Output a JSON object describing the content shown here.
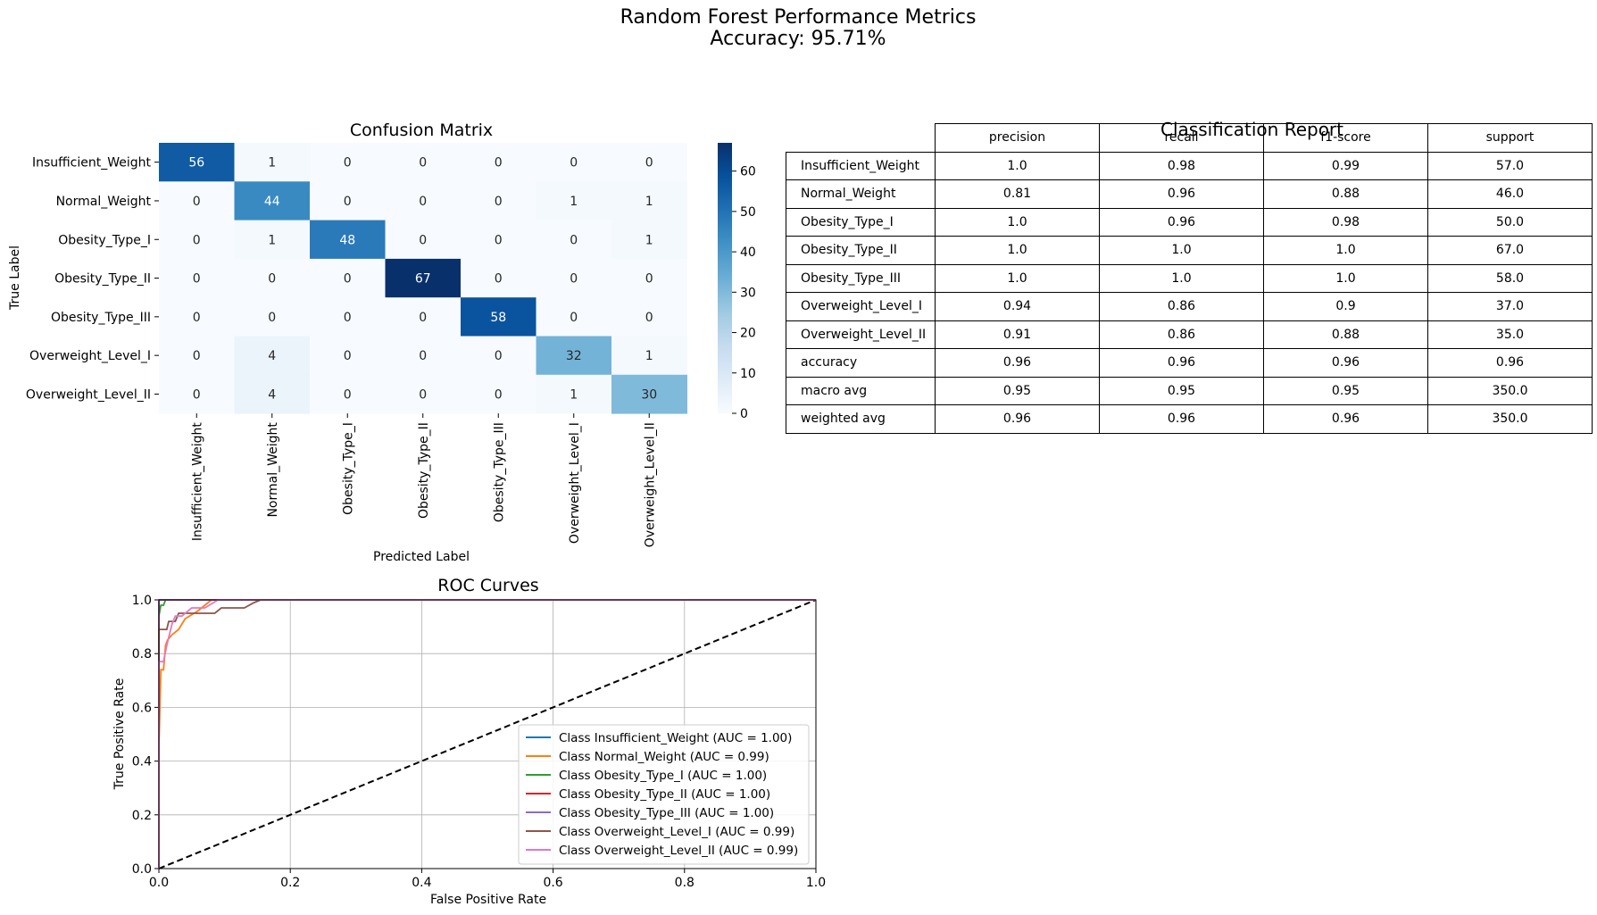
{
  "figure": {
    "suptitle": "Random Forest Performance Metrics",
    "subtitle": "Accuracy: 95.71%"
  },
  "colors": {
    "cmap_low": "#f7fbff",
    "cmap_high": "#08306b",
    "text_light": "#ffffff",
    "text_dark": "#262626",
    "diagonal": "#000000"
  },
  "chart_data": [
    {
      "type": "heatmap",
      "title": "Confusion Matrix",
      "xlabel": "Predicted Label",
      "ylabel": "True Label",
      "classes": [
        "Insufficient_Weight",
        "Normal_Weight",
        "Obesity_Type_I",
        "Obesity_Type_II",
        "Obesity_Type_III",
        "Overweight_Level_I",
        "Overweight_Level_II"
      ],
      "matrix": [
        [
          56,
          1,
          0,
          0,
          0,
          0,
          0
        ],
        [
          0,
          44,
          0,
          0,
          0,
          1,
          1
        ],
        [
          0,
          1,
          48,
          0,
          0,
          0,
          1
        ],
        [
          0,
          0,
          0,
          67,
          0,
          0,
          0
        ],
        [
          0,
          0,
          0,
          0,
          58,
          0,
          0
        ],
        [
          0,
          4,
          0,
          0,
          0,
          32,
          1
        ],
        [
          0,
          4,
          0,
          0,
          0,
          1,
          30
        ]
      ],
      "colorbar": {
        "min": 0,
        "max": 67,
        "ticks": [
          0,
          10,
          20,
          30,
          40,
          50,
          60
        ]
      },
      "colormap": "Blues"
    },
    {
      "type": "table",
      "title": "Classification Report",
      "columns": [
        "precision",
        "recall",
        "f1-score",
        "support"
      ],
      "rows": [
        {
          "label": "Insufficient_Weight",
          "values": [
            "1.0",
            "0.98",
            "0.99",
            "57.0"
          ]
        },
        {
          "label": "Normal_Weight",
          "values": [
            "0.81",
            "0.96",
            "0.88",
            "46.0"
          ]
        },
        {
          "label": "Obesity_Type_I",
          "values": [
            "1.0",
            "0.96",
            "0.98",
            "50.0"
          ]
        },
        {
          "label": "Obesity_Type_II",
          "values": [
            "1.0",
            "1.0",
            "1.0",
            "67.0"
          ]
        },
        {
          "label": "Obesity_Type_III",
          "values": [
            "1.0",
            "1.0",
            "1.0",
            "58.0"
          ]
        },
        {
          "label": "Overweight_Level_I",
          "values": [
            "0.94",
            "0.86",
            "0.9",
            "37.0"
          ]
        },
        {
          "label": "Overweight_Level_II",
          "values": [
            "0.91",
            "0.86",
            "0.88",
            "35.0"
          ]
        },
        {
          "label": "accuracy",
          "values": [
            "0.96",
            "0.96",
            "0.96",
            "0.96"
          ]
        },
        {
          "label": "macro avg",
          "values": [
            "0.95",
            "0.95",
            "0.95",
            "350.0"
          ]
        },
        {
          "label": "weighted avg",
          "values": [
            "0.96",
            "0.96",
            "0.96",
            "350.0"
          ]
        }
      ]
    },
    {
      "type": "line",
      "title": "ROC Curves",
      "xlabel": "False Positive Rate",
      "ylabel": "True Positive Rate",
      "xlim": [
        0,
        1
      ],
      "ylim": [
        0,
        1
      ],
      "xticks": [
        "0.0",
        "0.2",
        "0.4",
        "0.6",
        "0.8",
        "1.0"
      ],
      "yticks": [
        "0.0",
        "0.2",
        "0.4",
        "0.6",
        "0.8",
        "1.0"
      ],
      "grid": true,
      "legend_position": "lower right",
      "series": [
        {
          "name": "Class Insufficient_Weight (AUC = 1.00)",
          "color": "#1f77b4",
          "points": [
            [
              0,
              0
            ],
            [
              0,
              1.0
            ],
            [
              1,
              1
            ]
          ]
        },
        {
          "name": "Class Normal_Weight (AUC = 0.99)",
          "color": "#ff7f0e",
          "points": [
            [
              0,
              0
            ],
            [
              0,
              0.45
            ],
            [
              0.003,
              0.74
            ],
            [
              0.007,
              0.74
            ],
            [
              0.01,
              0.83
            ],
            [
              0.013,
              0.85
            ],
            [
              0.02,
              0.87
            ],
            [
              0.03,
              0.89
            ],
            [
              0.04,
              0.93
            ],
            [
              0.06,
              0.96
            ],
            [
              0.07,
              0.98
            ],
            [
              0.08,
              1.0
            ],
            [
              1,
              1
            ]
          ]
        },
        {
          "name": "Class Obesity_Type_I (AUC = 1.00)",
          "color": "#2ca02c",
          "points": [
            [
              0,
              0
            ],
            [
              0,
              0.94
            ],
            [
              0.003,
              0.98
            ],
            [
              0.007,
              0.98
            ],
            [
              0.01,
              1.0
            ],
            [
              1,
              1
            ]
          ]
        },
        {
          "name": "Class Obesity_Type_II (AUC = 1.00)",
          "color": "#d62728",
          "points": [
            [
              0,
              0
            ],
            [
              0,
              1.0
            ],
            [
              1,
              1
            ]
          ]
        },
        {
          "name": "Class Obesity_Type_III (AUC = 1.00)",
          "color": "#9467bd",
          "points": [
            [
              0,
              0
            ],
            [
              0,
              1.0
            ],
            [
              1,
              1
            ]
          ]
        },
        {
          "name": "Class Overweight_Level_I (AUC = 0.99)",
          "color": "#8c564b",
          "points": [
            [
              0,
              0
            ],
            [
              0,
              0.89
            ],
            [
              0.012,
              0.89
            ],
            [
              0.015,
              0.92
            ],
            [
              0.025,
              0.92
            ],
            [
              0.03,
              0.95
            ],
            [
              0.085,
              0.95
            ],
            [
              0.095,
              0.97
            ],
            [
              0.13,
              0.97
            ],
            [
              0.145,
              0.99
            ],
            [
              0.155,
              1.0
            ],
            [
              1,
              1
            ]
          ]
        },
        {
          "name": "Class Overweight_Level_II (AUC = 0.99)",
          "color": "#e377c2",
          "points": [
            [
              0,
              0
            ],
            [
              0,
              0.77
            ],
            [
              0.007,
              0.77
            ],
            [
              0.012,
              0.83
            ],
            [
              0.015,
              0.86
            ],
            [
              0.02,
              0.91
            ],
            [
              0.025,
              0.94
            ],
            [
              0.035,
              0.94
            ],
            [
              0.05,
              0.97
            ],
            [
              0.07,
              0.97
            ],
            [
              0.09,
              1.0
            ],
            [
              1,
              1
            ]
          ]
        }
      ],
      "diagonal": {
        "points": [
          [
            0,
            0
          ],
          [
            1,
            1
          ]
        ],
        "style": "dashed"
      }
    }
  ]
}
